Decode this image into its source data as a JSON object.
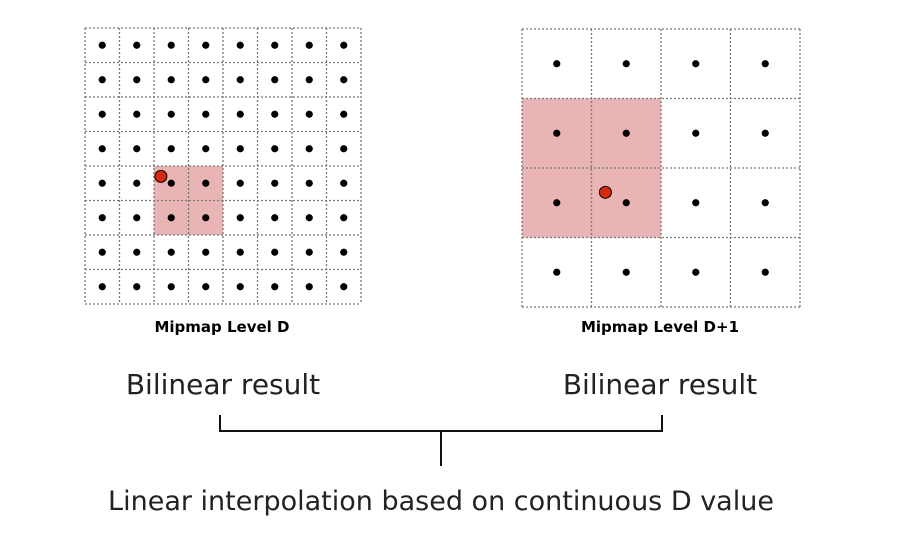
{
  "colors": {
    "highlight": "#e8b4b4",
    "grid_line": "#777777",
    "texel_dot": "#000000",
    "sample_point": "#d42a10"
  },
  "level_d": {
    "caption": "Mipmap Level D",
    "grid_size": 8,
    "highlight": {
      "col_start": 2,
      "row_start": 4,
      "cols": 2,
      "rows": 2
    },
    "sample": {
      "col": 2.2,
      "row": 4.3
    }
  },
  "level_d1": {
    "caption": "Mipmap Level D+1",
    "grid_size": 4,
    "highlight": {
      "col_start": 0,
      "row_start": 1,
      "cols": 2,
      "rows": 2
    },
    "sample": {
      "col": 1.2,
      "row": 2.35
    }
  },
  "left_result_label": "Bilinear result",
  "right_result_label": "Bilinear result",
  "bottom_label": "Linear interpolation based on continuous D value"
}
